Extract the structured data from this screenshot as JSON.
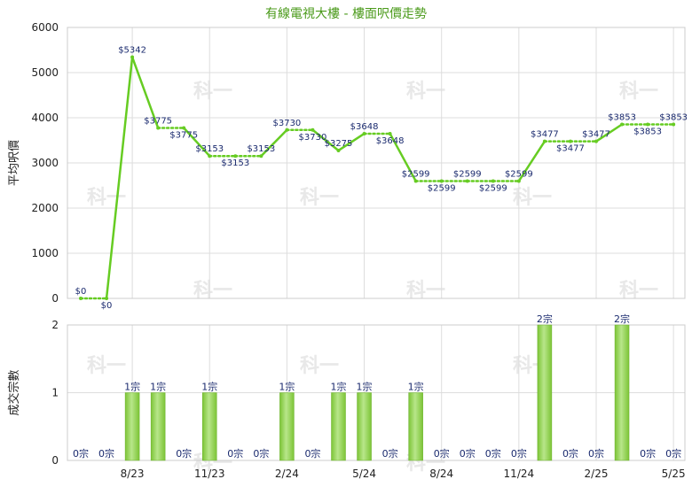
{
  "title": "有線電視大樓 - 樓面呎價走勢",
  "watermark": "科一",
  "colors": {
    "line": "#66cc22",
    "bar": "#7cc436",
    "bar_light": "#b8e68a",
    "grid": "#dddddd",
    "title": "#4a9a1a",
    "label": "#1a2a6e"
  },
  "chart_data": [
    {
      "type": "line",
      "ylabel": "平均呎價",
      "ylim": [
        0,
        6000
      ],
      "yticks": [
        "0",
        "1000",
        "2000",
        "3000",
        "4000",
        "5000",
        "6000"
      ],
      "grid": true,
      "points": [
        {
          "x": 0,
          "y": 0,
          "label": "$0",
          "pos": "above"
        },
        {
          "x": 1,
          "y": 0,
          "label": "$0",
          "pos": "below"
        },
        {
          "x": 2,
          "y": 5342,
          "label": "$5342",
          "pos": "above"
        },
        {
          "x": 3,
          "y": 3775,
          "label": "$3775",
          "pos": "above"
        },
        {
          "x": 4,
          "y": 3775,
          "label": "$3775",
          "pos": "below"
        },
        {
          "x": 5,
          "y": 3153,
          "label": "$3153",
          "pos": "above"
        },
        {
          "x": 6,
          "y": 3153,
          "label": "$3153",
          "pos": "below"
        },
        {
          "x": 7,
          "y": 3153,
          "label": "$3153",
          "pos": "above"
        },
        {
          "x": 8,
          "y": 3730,
          "label": "$3730",
          "pos": "above"
        },
        {
          "x": 9,
          "y": 3730,
          "label": "$3730",
          "pos": "below"
        },
        {
          "x": 10,
          "y": 3275,
          "label": "$3275",
          "pos": "above"
        },
        {
          "x": 11,
          "y": 3648,
          "label": "$3648",
          "pos": "above"
        },
        {
          "x": 12,
          "y": 3648,
          "label": "$3648",
          "pos": "below"
        },
        {
          "x": 13,
          "y": 2599,
          "label": "$2599",
          "pos": "above"
        },
        {
          "x": 14,
          "y": 2599,
          "label": "$2599",
          "pos": "below"
        },
        {
          "x": 15,
          "y": 2599,
          "label": "$2599",
          "pos": "above"
        },
        {
          "x": 16,
          "y": 2599,
          "label": "$2599",
          "pos": "below"
        },
        {
          "x": 17,
          "y": 2599,
          "label": "$2599",
          "pos": "above"
        },
        {
          "x": 18,
          "y": 3477,
          "label": "$3477",
          "pos": "above"
        },
        {
          "x": 19,
          "y": 3477,
          "label": "$3477",
          "pos": "below"
        },
        {
          "x": 20,
          "y": 3477,
          "label": "$3477",
          "pos": "above"
        },
        {
          "x": 21,
          "y": 3853,
          "label": "$3853",
          "pos": "above"
        },
        {
          "x": 22,
          "y": 3853,
          "label": "$3853",
          "pos": "below"
        },
        {
          "x": 23,
          "y": 3853,
          "label": "$3853",
          "pos": "above"
        }
      ],
      "dotted_segments": [
        [
          0,
          1
        ],
        [
          3,
          4
        ],
        [
          5,
          6
        ],
        [
          6,
          7
        ],
        [
          8,
          9
        ],
        [
          11,
          12
        ],
        [
          13,
          14
        ],
        [
          14,
          15
        ],
        [
          15,
          16
        ],
        [
          16,
          17
        ],
        [
          18,
          19
        ],
        [
          19,
          20
        ],
        [
          21,
          22
        ],
        [
          22,
          23
        ]
      ]
    },
    {
      "type": "bar",
      "ylabel": "成交宗數",
      "ylim": [
        0,
        2
      ],
      "yticks": [
        "0",
        "1",
        "2"
      ],
      "grid": true,
      "values": [
        0,
        0,
        1,
        1,
        0,
        1,
        0,
        0,
        1,
        0,
        1,
        1,
        0,
        1,
        0,
        0,
        0,
        0,
        2,
        0,
        0,
        2,
        0,
        0
      ],
      "labels": [
        "0宗",
        "0宗",
        "1宗",
        "1宗",
        "0宗",
        "1宗",
        "0宗",
        "0宗",
        "1宗",
        "0宗",
        "1宗",
        "1宗",
        "0宗",
        "1宗",
        "0宗",
        "0宗",
        "0宗",
        "0宗",
        "2宗",
        "0宗",
        "0宗",
        "2宗",
        "0宗",
        "0宗"
      ],
      "xtick_labels": [
        {
          "index": 2,
          "label": "8/23"
        },
        {
          "index": 5,
          "label": "11/23"
        },
        {
          "index": 8,
          "label": "2/24"
        },
        {
          "index": 11,
          "label": "5/24"
        },
        {
          "index": 14,
          "label": "8/24"
        },
        {
          "index": 17,
          "label": "11/24"
        },
        {
          "index": 20,
          "label": "2/25"
        },
        {
          "index": 23,
          "label": "5/25"
        }
      ]
    }
  ]
}
